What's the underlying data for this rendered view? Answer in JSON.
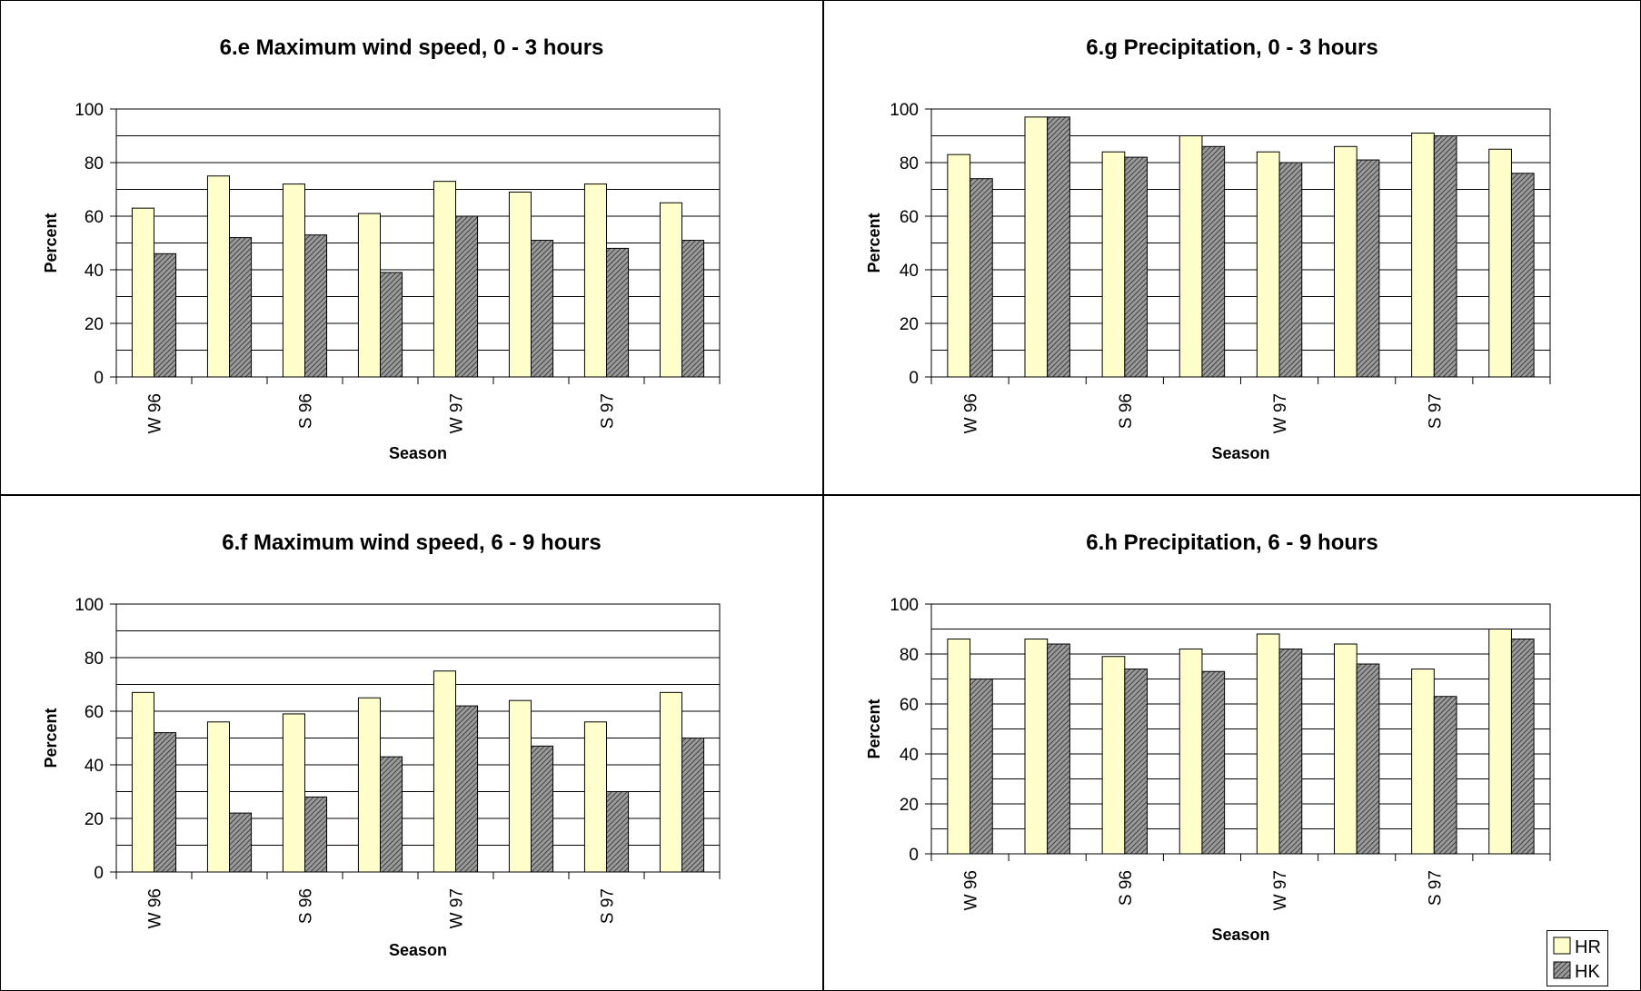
{
  "legend": {
    "position": "bottom-right",
    "entries": [
      {
        "label": "HR",
        "color": "#ffffcc",
        "pattern": "solid"
      },
      {
        "label": "HK",
        "color": "#808080",
        "pattern": "hatched"
      }
    ]
  },
  "chart_data": [
    {
      "type": "bar",
      "title": "6.e Maximum wind speed, 0 - 3 hours",
      "xlabel": "Season",
      "ylabel": "Percent",
      "ylim": [
        0,
        100
      ],
      "yticks": [
        0,
        20,
        40,
        60,
        80,
        100
      ],
      "grid": true,
      "categories": [
        "W 96",
        "",
        "S 96",
        "",
        "W 97",
        "",
        "S 97",
        ""
      ],
      "series": [
        {
          "name": "HR",
          "values": [
            63,
            75,
            72,
            61,
            73,
            69,
            72,
            65
          ]
        },
        {
          "name": "HK",
          "values": [
            46,
            52,
            53,
            39,
            60,
            51,
            48,
            51
          ]
        }
      ]
    },
    {
      "type": "bar",
      "title": "6.g Precipitation, 0 - 3 hours",
      "xlabel": "Season",
      "ylabel": "Percent",
      "ylim": [
        0,
        100
      ],
      "yticks": [
        0,
        20,
        40,
        60,
        80,
        100
      ],
      "grid": true,
      "categories": [
        "W 96",
        "",
        "S 96",
        "",
        "W 97",
        "",
        "S 97",
        ""
      ],
      "series": [
        {
          "name": "HR",
          "values": [
            83,
            97,
            84,
            90,
            84,
            86,
            91,
            85
          ]
        },
        {
          "name": "HK",
          "values": [
            74,
            97,
            82,
            86,
            80,
            81,
            90,
            76
          ]
        }
      ]
    },
    {
      "type": "bar",
      "title": "6.f Maximum wind speed, 6 - 9 hours",
      "xlabel": "Season",
      "ylabel": "Percent",
      "ylim": [
        0,
        100
      ],
      "yticks": [
        0,
        20,
        40,
        60,
        80,
        100
      ],
      "grid": true,
      "categories": [
        "W 96",
        "",
        "S 96",
        "",
        "W 97",
        "",
        "S 97",
        ""
      ],
      "series": [
        {
          "name": "HR",
          "values": [
            67,
            56,
            59,
            65,
            75,
            64,
            56,
            67
          ]
        },
        {
          "name": "HK",
          "values": [
            52,
            22,
            28,
            43,
            62,
            47,
            30,
            50
          ]
        }
      ]
    },
    {
      "type": "bar",
      "title": "6.h Precipitation, 6 - 9 hours",
      "xlabel": "Season",
      "ylabel": "Percent",
      "ylim": [
        0,
        100
      ],
      "yticks": [
        0,
        20,
        40,
        60,
        80,
        100
      ],
      "grid": true,
      "categories": [
        "W 96",
        "",
        "S 96",
        "",
        "W 97",
        "",
        "S 97",
        ""
      ],
      "series": [
        {
          "name": "HR",
          "values": [
            86,
            86,
            79,
            82,
            88,
            84,
            74,
            90
          ]
        },
        {
          "name": "HK",
          "values": [
            70,
            84,
            74,
            73,
            82,
            76,
            63,
            86
          ]
        }
      ]
    }
  ]
}
